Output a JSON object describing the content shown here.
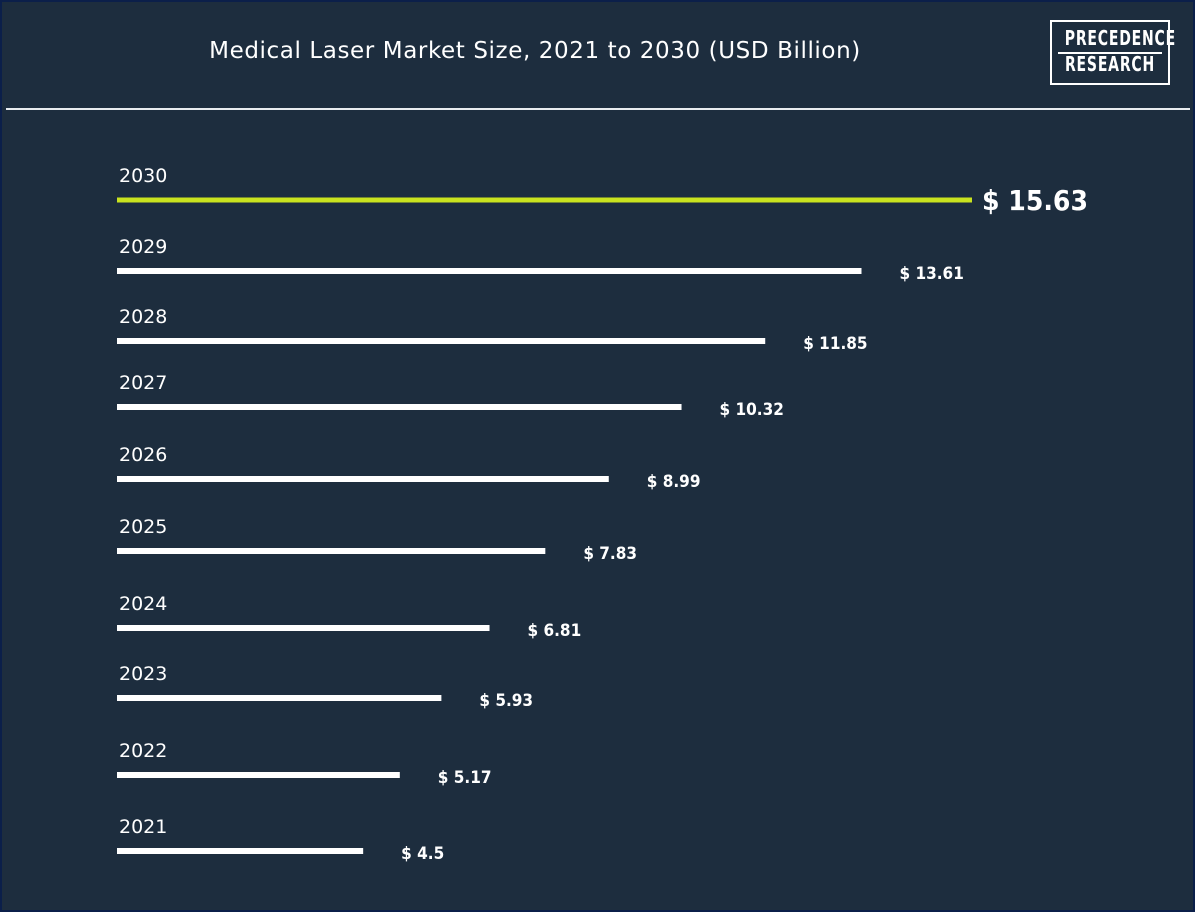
{
  "title": "Medical Laser Market Size, 2021 to 2030 (USD Billion)",
  "logo": {
    "line1": "PRECEDENCE",
    "line2": "RESEARCH"
  },
  "colors": {
    "background": "#1d2d3e",
    "bar": "#ffffff",
    "highlight_bar": "#c9e31f",
    "text": "#ffffff"
  },
  "chart_data": {
    "type": "bar",
    "orientation": "horizontal",
    "title": "Medical Laser Market Size, 2021 to 2030 (USD Billion)",
    "value_prefix": "$ ",
    "highlight_category": "2030",
    "xlim": [
      0,
      15.63
    ],
    "grid": false,
    "categories": [
      "2030",
      "2029",
      "2028",
      "2027",
      "2026",
      "2025",
      "2024",
      "2023",
      "2022",
      "2021"
    ],
    "values": [
      15.63,
      13.61,
      11.85,
      10.32,
      8.99,
      7.83,
      6.81,
      5.93,
      5.17,
      4.5
    ],
    "value_labels": [
      "$ 15.63",
      "$ 13.61",
      "$ 11.85",
      "$ 10.32",
      "$ 8.99",
      "$ 7.83",
      "$ 6.81",
      "$ 5.93",
      "$ 5.17",
      "$ 4.5"
    ]
  }
}
